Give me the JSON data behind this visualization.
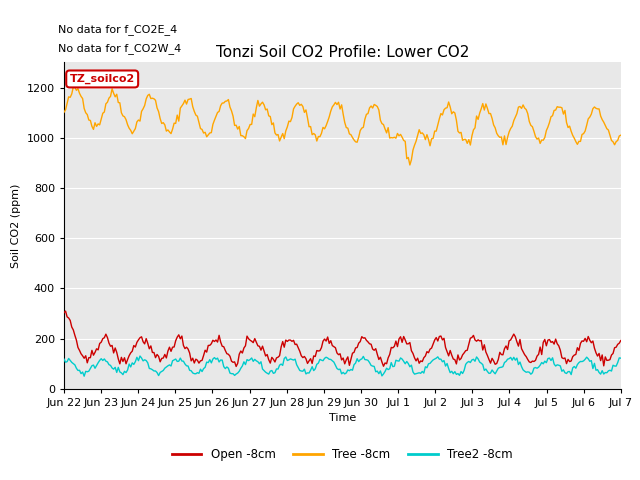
{
  "title": "Tonzi Soil CO2 Profile: Lower CO2",
  "ylabel": "Soil CO2 (ppm)",
  "xlabel": "Time",
  "annotations": [
    "No data for f_CO2E_4",
    "No data for f_CO2W_4"
  ],
  "legend_label": "TZ_soilco2",
  "ylim": [
    0,
    1300
  ],
  "yticks": [
    0,
    200,
    400,
    600,
    800,
    1000,
    1200
  ],
  "bg_color": "#e8e8e8",
  "line_open_color": "#cc0000",
  "line_tree_color": "#ffa500",
  "line_tree2_color": "#00cccc",
  "legend_entries": [
    "Open -8cm",
    "Tree -8cm",
    "Tree2 -8cm"
  ],
  "legend_colors": [
    "#cc0000",
    "#ffa500",
    "#00cccc"
  ],
  "n_points": 360,
  "x_tick_labels": [
    "Jun 22",
    "Jun 23",
    "Jun 24",
    "Jun 25",
    "Jun 26",
    "Jun 27",
    "Jun 28",
    "Jun 29",
    "Jun 30",
    "Jul 1",
    "Jul 2",
    "Jul 3",
    "Jul 4",
    "Jul 5",
    "Jul 6",
    "Jul 7"
  ],
  "title_fontsize": 11,
  "axis_fontsize": 8
}
